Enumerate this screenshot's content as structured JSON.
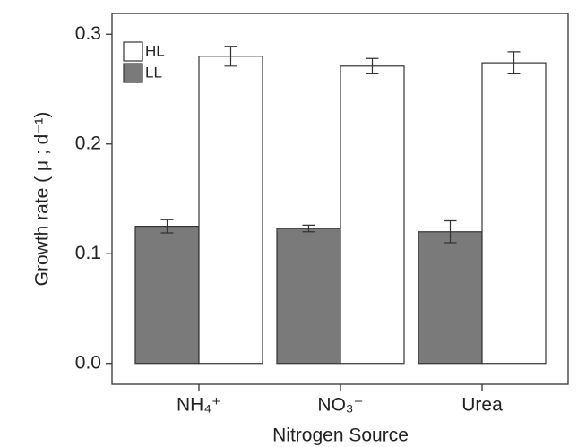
{
  "chart_data": {
    "type": "bar",
    "x_label": "Nitrogen Source",
    "y_label": "Growth rate ( μ ; d⁻¹)",
    "categories": [
      "NH₄⁺",
      "NO₃⁻",
      "Urea"
    ],
    "series": [
      {
        "name": "HL",
        "color": "#ffffff",
        "values": [
          0.28,
          0.271,
          0.274
        ],
        "errors": [
          0.009,
          0.007,
          0.01
        ]
      },
      {
        "name": "LL",
        "color": "#7a7a7a",
        "values": [
          0.125,
          0.123,
          0.12
        ],
        "errors": [
          0.006,
          0.003,
          0.01
        ]
      }
    ],
    "ylim": [
      -0.019,
      0.319
    ],
    "yticks": [
      {
        "value": 0,
        "label": "0.0"
      },
      0.1,
      0.2,
      0.3
    ],
    "legend": "upper left",
    "grid": false
  }
}
